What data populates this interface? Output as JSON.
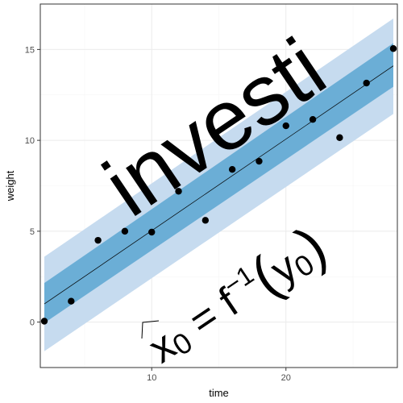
{
  "chart_data": {
    "type": "scatter",
    "title": "",
    "xlabel": "time",
    "ylabel": "weight",
    "xlim": [
      1.7,
      28.3
    ],
    "ylim": [
      -2.5,
      17.5
    ],
    "x_ticks": [
      10,
      20
    ],
    "y_ticks": [
      0,
      5,
      10,
      15
    ],
    "grid": true,
    "legend": "none",
    "series": [
      {
        "values": [
          {
            "x": 2,
            "y": 0.05
          },
          {
            "x": 4,
            "y": 1.15
          },
          {
            "x": 6,
            "y": 4.5
          },
          {
            "x": 8,
            "y": 5.0
          },
          {
            "x": 10,
            "y": 4.95
          },
          {
            "x": 12,
            "y": 7.2
          },
          {
            "x": 14,
            "y": 5.6
          },
          {
            "x": 16,
            "y": 8.4
          },
          {
            "x": 18,
            "y": 8.85
          },
          {
            "x": 20,
            "y": 10.8
          },
          {
            "x": 22,
            "y": 11.15
          },
          {
            "x": 24,
            "y": 10.15
          },
          {
            "x": 26,
            "y": 13.15
          },
          {
            "x": 28,
            "y": 15.05
          }
        ]
      }
    ],
    "fit_line": {
      "x": [
        2,
        28
      ],
      "y": [
        1.0,
        14.1
      ]
    },
    "confidence_band": {
      "x": [
        2,
        28
      ],
      "lower": [
        -0.05,
        12.95
      ],
      "upper": [
        2.15,
        15.35
      ]
    },
    "prediction_band": {
      "x": [
        2,
        28
      ],
      "lower": [
        -1.6,
        11.45
      ],
      "upper": [
        3.6,
        16.7
      ]
    },
    "annotations": [
      {
        "text": "investi"
      },
      {
        "text": "x",
        "sub": "0",
        "mid": " = f",
        "sup": "−1",
        "open": "(",
        "var": "y",
        "var_sub": "0",
        "close": ")"
      }
    ],
    "colors": {
      "panel_border": "#333333",
      "grid_major": "#ebebeb",
      "grid_minor": "#f5f5f5",
      "prediction_band": "#c6dbef",
      "confidence_band": "#6baed6",
      "points": "#000000",
      "fit_line": "#000000"
    }
  }
}
